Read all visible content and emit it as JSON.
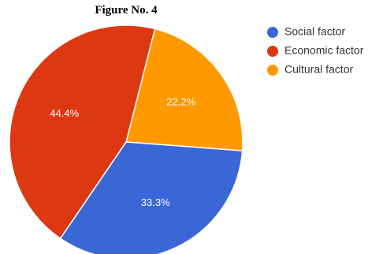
{
  "chart_data": {
    "type": "pie",
    "title": "Figure No. 4",
    "slices": [
      {
        "name": "Social factor",
        "value": 33.3,
        "label": "33.3%",
        "color": "#3a67d6"
      },
      {
        "name": "Economic factor",
        "value": 44.4,
        "label": "44.4%",
        "color": "#dc3912"
      },
      {
        "name": "Cultural factor",
        "value": 22.2,
        "label": "22.2%",
        "color": "#ff9900"
      }
    ],
    "legend_position": "right"
  }
}
